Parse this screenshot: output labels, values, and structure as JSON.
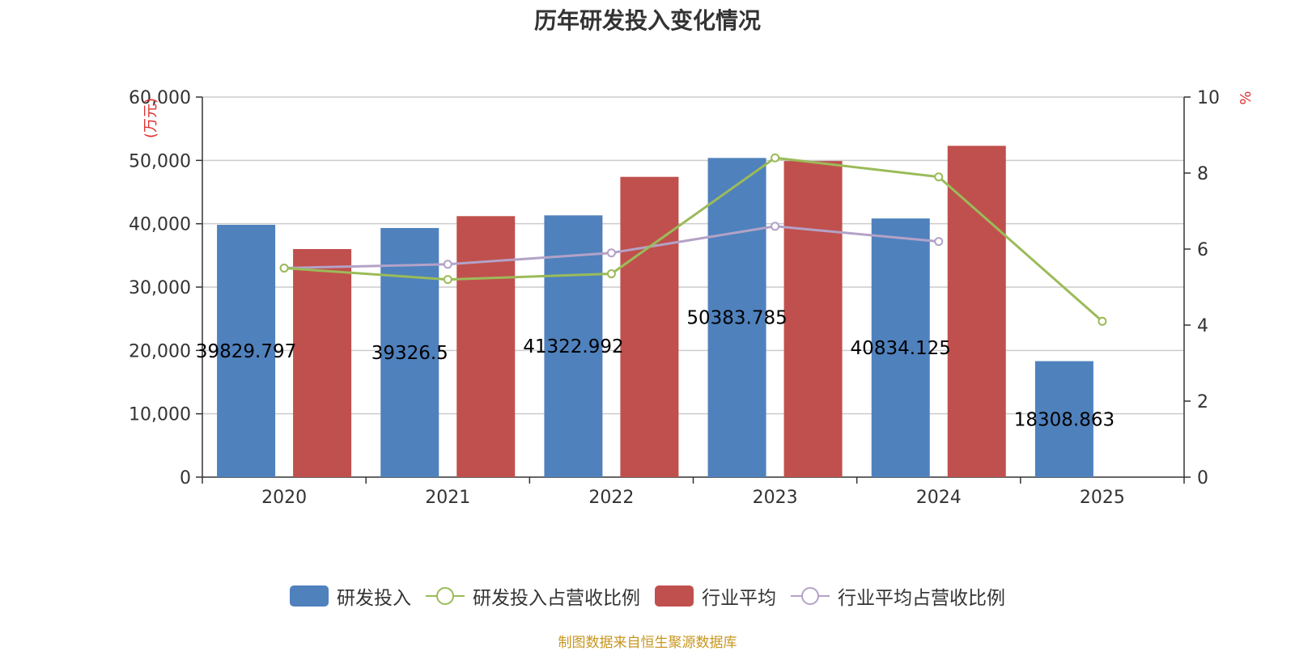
{
  "colors": {
    "rd_bar": "#4f81bd",
    "industry_bar": "#c0504d",
    "rd_ratio_line": "#9bbb59",
    "industry_ratio_line": "#b3a2c7",
    "grid": "#cccccc",
    "axis": "#333333",
    "unit": "#e03030",
    "source": "#c8961e"
  },
  "chart_data": {
    "type": "bar",
    "title": "历年研发投入变化情况",
    "categories": [
      "2020",
      "2021",
      "2022",
      "2023",
      "2024",
      "2025"
    ],
    "left_axis": {
      "unit": "(万元)",
      "ylim": [
        0,
        60000
      ],
      "ticks": [
        "0",
        "10,000",
        "20,000",
        "30,000",
        "40,000",
        "50,000",
        "60,000"
      ]
    },
    "right_axis": {
      "unit": "%",
      "ylim": [
        0,
        10
      ],
      "ticks": [
        "0",
        "2",
        "4",
        "6",
        "8",
        "10"
      ]
    },
    "grid": true,
    "legend_position": "bottom",
    "series": [
      {
        "name": "研发投入",
        "type": "bar",
        "axis": "left",
        "values": [
          39829.797,
          39326.5,
          41322.992,
          50383.785,
          40834.125,
          18308.863
        ],
        "labels": [
          "39829.797",
          "39326.5",
          "41322.992",
          "50383.785",
          "40834.125",
          "18308.863"
        ]
      },
      {
        "name": "研发投入占营收比例",
        "type": "line",
        "axis": "right",
        "values": [
          5.5,
          5.2,
          5.35,
          8.4,
          7.9,
          4.1
        ]
      },
      {
        "name": "行业平均",
        "type": "bar",
        "axis": "left",
        "values": [
          36000,
          41200,
          47400,
          49900,
          52300,
          null
        ]
      },
      {
        "name": "行业平均占营收比例",
        "type": "line",
        "axis": "right",
        "values": [
          5.5,
          5.6,
          5.9,
          6.6,
          6.2,
          null
        ]
      }
    ]
  },
  "source_note": "制图数据来自恒生聚源数据库"
}
